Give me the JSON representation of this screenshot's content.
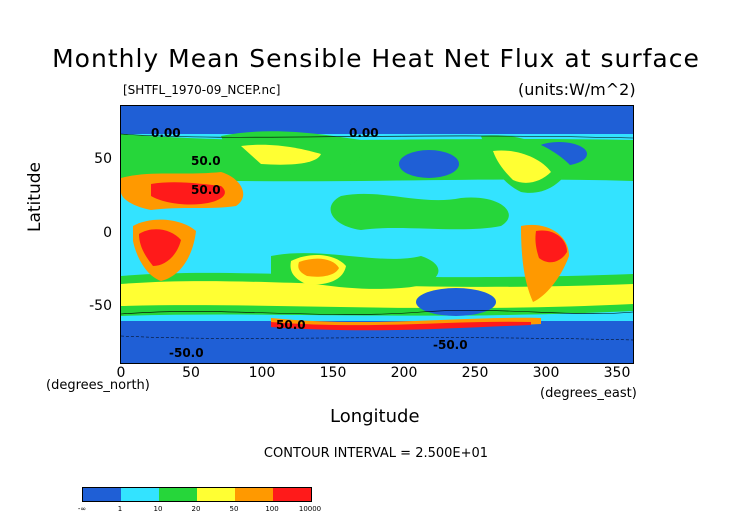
{
  "title": "Monthly Mean Sensible Heat Net Flux at surface",
  "file_label": "[SHTFL_1970-09_NCEP.nc]",
  "units_label": "(units:W/m^2)",
  "y_axis": {
    "label": "Latitude",
    "note": "(degrees_north)",
    "ticks": [
      "50",
      "0",
      "-50"
    ]
  },
  "x_axis": {
    "label": "Longitude",
    "note": "(degrees_east)",
    "ticks": [
      "0",
      "50",
      "100",
      "150",
      "200",
      "250",
      "300",
      "350"
    ]
  },
  "contour_interval": "CONTOUR INTERVAL = 2.500E+01",
  "contour_labels": [
    "0.00",
    "50.0",
    "0.00",
    "50.0",
    "50.0",
    "-50.0",
    "-50.0"
  ],
  "legend": {
    "colors": [
      "#1f5fd6",
      "#33e3ff",
      "#26d63a",
      "#ffff33",
      "#ff9900",
      "#ff1a1a"
    ],
    "tick_labels": [
      "-∞",
      "1",
      "10",
      "20",
      "50",
      "100",
      "10000"
    ]
  }
}
